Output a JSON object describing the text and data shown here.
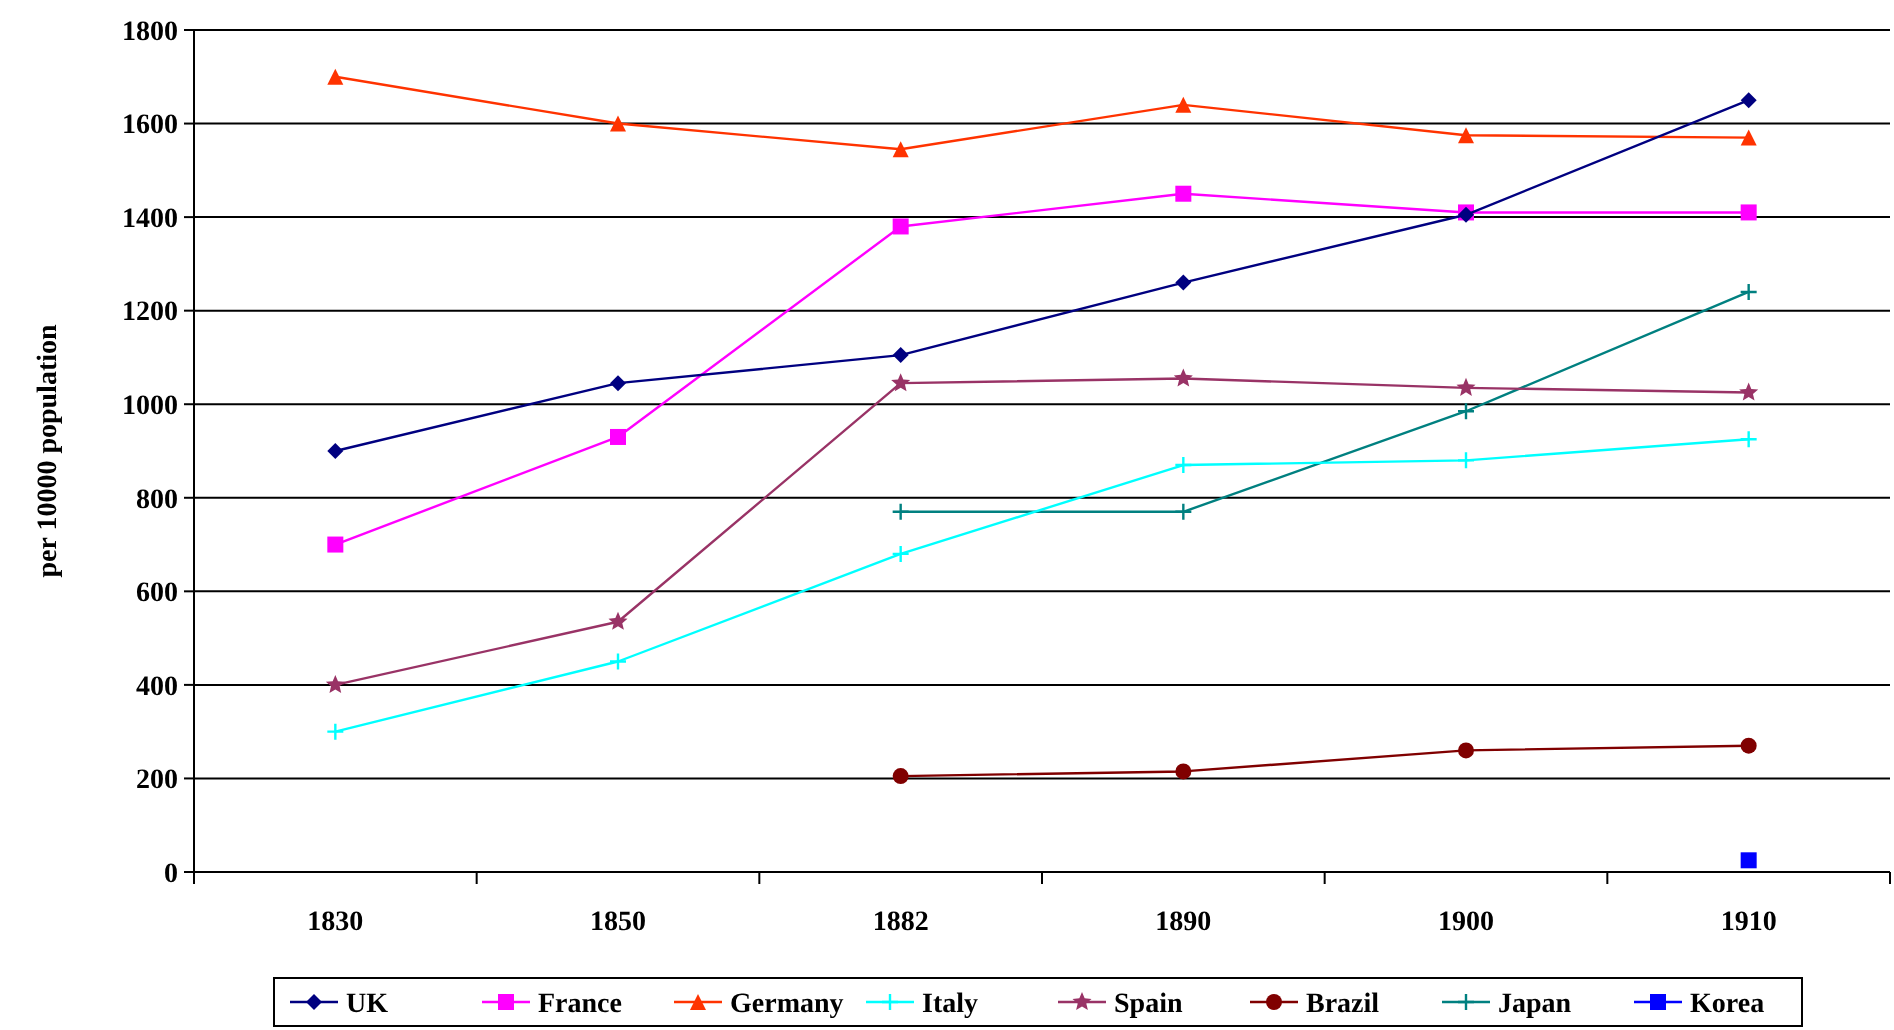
{
  "chart_data": {
    "type": "line",
    "ylabel": "per 10000 population",
    "categories": [
      "1830",
      "1850",
      "1882",
      "1890",
      "1900",
      "1910"
    ],
    "ylim": [
      0,
      1800
    ],
    "yticks": [
      0,
      200,
      400,
      600,
      800,
      1000,
      1200,
      1400,
      1600,
      1800
    ],
    "grid": "y",
    "legend": "bottom",
    "line_style": "solid",
    "series": [
      {
        "name": "UK",
        "color": "#000080",
        "marker": "diamond",
        "values": [
          900,
          1045,
          1105,
          1260,
          1405,
          1650
        ]
      },
      {
        "name": "France",
        "color": "#ff00ff",
        "marker": "square",
        "values": [
          700,
          930,
          1380,
          1450,
          1410,
          1410
        ]
      },
      {
        "name": "Germany",
        "color": "#ff3300",
        "marker": "triangle",
        "values": [
          1700,
          1600,
          1545,
          1640,
          1575,
          1570
        ]
      },
      {
        "name": "Italy",
        "color": "#00ffff",
        "marker": "cross",
        "values": [
          300,
          450,
          680,
          870,
          880,
          925
        ]
      },
      {
        "name": "Spain",
        "color": "#993366",
        "marker": "star",
        "values": [
          400,
          535,
          1045,
          1055,
          1035,
          1025
        ]
      },
      {
        "name": "Brazil",
        "color": "#800000",
        "marker": "circle",
        "values": [
          null,
          null,
          205,
          215,
          260,
          270
        ]
      },
      {
        "name": "Japan",
        "color": "#008080",
        "marker": "cross",
        "values": [
          null,
          null,
          770,
          770,
          985,
          1240
        ]
      },
      {
        "name": "Korea",
        "color": "#0000ff",
        "marker": "square",
        "values": [
          null,
          null,
          null,
          null,
          null,
          25
        ]
      }
    ]
  }
}
